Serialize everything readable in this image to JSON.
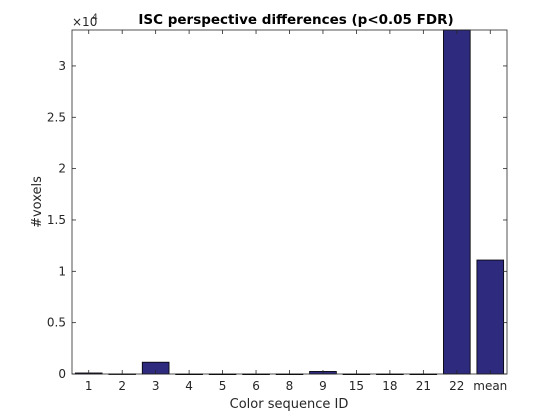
{
  "chart_data": {
    "type": "bar",
    "title": "ISC perspective differences (p<0.05 FDR)",
    "xlabel": "Color sequence ID",
    "ylabel": "#voxels",
    "y_exponent_label": "×10",
    "y_exponent": "4",
    "categories": [
      "1",
      "2",
      "3",
      "4",
      "5",
      "6",
      "8",
      "9",
      "15",
      "18",
      "21",
      "22",
      "mean"
    ],
    "values": [
      100,
      10,
      1150,
      0,
      0,
      0,
      0,
      250,
      0,
      0,
      0,
      33500,
      11100
    ],
    "ylim": [
      0,
      33500
    ],
    "yticks": [
      0,
      5000,
      10000,
      15000,
      20000,
      25000,
      30000
    ],
    "ytick_labels": [
      "0",
      "0.5",
      "1",
      "1.5",
      "2",
      "2.5",
      "3"
    ],
    "bar_color": "#2e2a7d",
    "grid": false,
    "box": true
  }
}
